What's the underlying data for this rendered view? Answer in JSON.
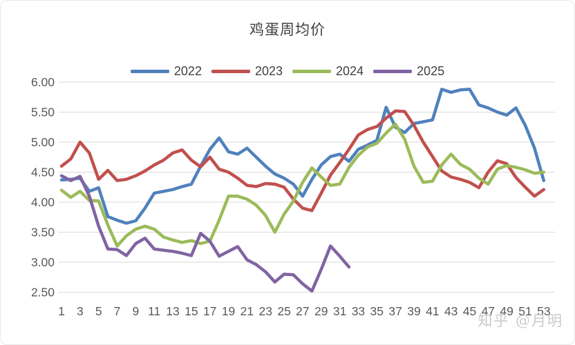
{
  "window": {
    "background": "#ffffff",
    "border_color": "#e7e7e7"
  },
  "watermark": {
    "text": "知乎 @月明",
    "color": "#c9c9c9"
  },
  "chart_data": {
    "type": "line",
    "title": "鸡蛋周均价",
    "legend_position": "top",
    "grid": "horizontal-only",
    "grid_color": "#d9d9d9",
    "axis_label_color": "#595959",
    "ylim": [
      2.5,
      6.0
    ],
    "y_ticks": [
      "6.00",
      "5.50",
      "5.00",
      "4.50",
      "4.00",
      "3.50",
      "3.00",
      "2.50"
    ],
    "x_tick_labels": [
      "1",
      "3",
      "5",
      "7",
      "9",
      "11",
      "13",
      "15",
      "17",
      "19",
      "21",
      "23",
      "25",
      "27",
      "29",
      "31",
      "33",
      "35",
      "37",
      "39",
      "41",
      "43",
      "45",
      "47",
      "49",
      "51",
      "53"
    ],
    "x_weeks_total": 53,
    "series": [
      {
        "name": "2022",
        "color": "#4f81bd",
        "start_week": 1,
        "values": [
          4.37,
          4.38,
          4.4,
          4.18,
          4.24,
          3.76,
          3.7,
          3.65,
          3.69,
          3.9,
          4.15,
          4.18,
          4.21,
          4.26,
          4.3,
          4.6,
          4.88,
          5.07,
          4.84,
          4.8,
          4.9,
          4.75,
          4.6,
          4.47,
          4.4,
          4.3,
          4.1,
          4.38,
          4.62,
          4.76,
          4.8,
          4.68,
          4.88,
          4.95,
          5.03,
          5.58,
          5.25,
          5.16,
          5.31,
          5.34,
          5.37,
          5.88,
          5.83,
          5.87,
          5.88,
          5.62,
          5.57,
          5.5,
          5.45,
          5.57,
          5.28,
          4.9,
          4.36
        ]
      },
      {
        "name": "2023",
        "color": "#c0504d",
        "start_week": 1,
        "values": [
          4.6,
          4.72,
          5.0,
          4.82,
          4.38,
          4.53,
          4.36,
          4.38,
          4.44,
          4.52,
          4.62,
          4.7,
          4.82,
          4.87,
          4.7,
          4.59,
          4.75,
          4.55,
          4.5,
          4.4,
          4.28,
          4.26,
          4.31,
          4.3,
          4.25,
          4.05,
          3.9,
          3.86,
          4.15,
          4.45,
          4.66,
          4.88,
          5.12,
          5.21,
          5.26,
          5.4,
          5.52,
          5.51,
          5.28,
          5.0,
          4.76,
          4.52,
          4.42,
          4.38,
          4.33,
          4.24,
          4.5,
          4.69,
          4.64,
          4.41,
          4.25,
          4.1,
          4.21
        ]
      },
      {
        "name": "2024",
        "color": "#9bbb59",
        "start_week": 1,
        "values": [
          4.2,
          4.08,
          4.18,
          4.03,
          4.02,
          3.62,
          3.27,
          3.44,
          3.55,
          3.6,
          3.55,
          3.42,
          3.37,
          3.33,
          3.36,
          3.31,
          3.35,
          3.7,
          4.1,
          4.1,
          4.05,
          3.95,
          3.78,
          3.5,
          3.8,
          4.02,
          4.33,
          4.57,
          4.42,
          4.28,
          4.3,
          4.58,
          4.78,
          4.92,
          4.98,
          5.15,
          5.3,
          5.05,
          4.6,
          4.33,
          4.35,
          4.62,
          4.8,
          4.63,
          4.55,
          4.4,
          4.3,
          4.55,
          4.61,
          4.58,
          4.54,
          4.48,
          4.5
        ]
      },
      {
        "name": "2025",
        "color": "#8064a2",
        "start_week": 1,
        "values": [
          4.44,
          4.36,
          4.43,
          4.1,
          3.6,
          3.22,
          3.21,
          3.11,
          3.31,
          3.4,
          3.22,
          3.2,
          3.18,
          3.15,
          3.11,
          3.48,
          3.35,
          3.1,
          3.18,
          3.26,
          3.04,
          2.96,
          2.84,
          2.67,
          2.8,
          2.79,
          2.64,
          2.52,
          2.88,
          3.27,
          3.1,
          2.92
        ]
      }
    ]
  }
}
